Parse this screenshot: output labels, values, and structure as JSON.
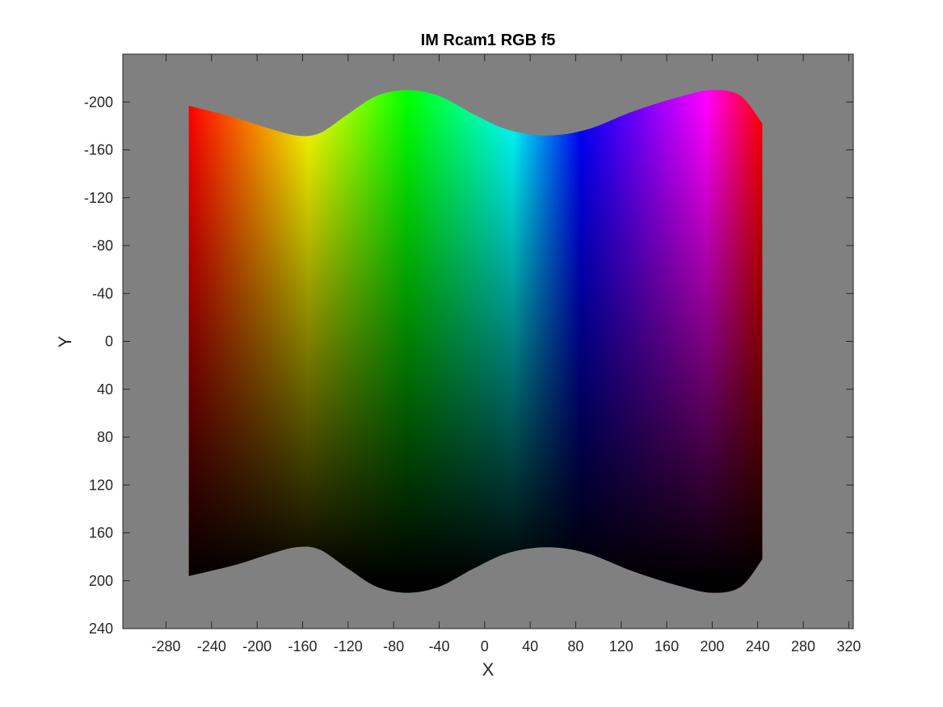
{
  "chart_data": {
    "type": "heatmap",
    "title": "IM Rcam1 RGB f5",
    "xlabel": "X",
    "ylabel": "Y",
    "xlim": [
      -318,
      324
    ],
    "ylim": [
      -240,
      240
    ],
    "y_axis_direction": "reversed",
    "x_ticks": [
      -280,
      -240,
      -200,
      -160,
      -120,
      -80,
      -40,
      0,
      40,
      80,
      120,
      160,
      200,
      240,
      280,
      320
    ],
    "y_ticks": [
      -200,
      -160,
      -120,
      -80,
      -40,
      0,
      40,
      80,
      120,
      160,
      200,
      240
    ],
    "background_color": "#808080",
    "image_extent_x": [
      -260,
      244
    ],
    "hue_gradient_x": [
      {
        "x": -260,
        "color": "#ff0000"
      },
      {
        "x": -155,
        "color": "#ffff00"
      },
      {
        "x": -68,
        "color": "#00ff00"
      },
      {
        "x": 25,
        "color": "#00ffff"
      },
      {
        "x": 85,
        "color": "#0000ff"
      },
      {
        "x": 195,
        "color": "#ff00ff"
      },
      {
        "x": 244,
        "color": "#ff0000"
      }
    ],
    "brightness_gradient_y": [
      {
        "y": -200,
        "brightness": 1.0
      },
      {
        "y": 200,
        "brightness": 0.0
      }
    ],
    "top_boundary": [
      {
        "x": -260,
        "y": -197
      },
      {
        "x": -220,
        "y": -187
      },
      {
        "x": -190,
        "y": -178
      },
      {
        "x": -165,
        "y": -172
      },
      {
        "x": -145,
        "y": -174
      },
      {
        "x": -120,
        "y": -190
      },
      {
        "x": -95,
        "y": -205
      },
      {
        "x": -68,
        "y": -210
      },
      {
        "x": -40,
        "y": -205
      },
      {
        "x": -10,
        "y": -190
      },
      {
        "x": 20,
        "y": -177
      },
      {
        "x": 55,
        "y": -172
      },
      {
        "x": 90,
        "y": -177
      },
      {
        "x": 130,
        "y": -192
      },
      {
        "x": 170,
        "y": -204
      },
      {
        "x": 200,
        "y": -210
      },
      {
        "x": 225,
        "y": -205
      },
      {
        "x": 244,
        "y": -182
      }
    ],
    "bottom_boundary": [
      {
        "x": -260,
        "y": 196
      },
      {
        "x": -220,
        "y": 187
      },
      {
        "x": -190,
        "y": 178
      },
      {
        "x": -165,
        "y": 172
      },
      {
        "x": -145,
        "y": 174
      },
      {
        "x": -120,
        "y": 190
      },
      {
        "x": -95,
        "y": 205
      },
      {
        "x": -68,
        "y": 210
      },
      {
        "x": -40,
        "y": 205
      },
      {
        "x": -10,
        "y": 190
      },
      {
        "x": 20,
        "y": 177
      },
      {
        "x": 55,
        "y": 172
      },
      {
        "x": 90,
        "y": 177
      },
      {
        "x": 130,
        "y": 192
      },
      {
        "x": 170,
        "y": 204
      },
      {
        "x": 200,
        "y": 210
      },
      {
        "x": 225,
        "y": 205
      },
      {
        "x": 244,
        "y": 182
      }
    ]
  }
}
